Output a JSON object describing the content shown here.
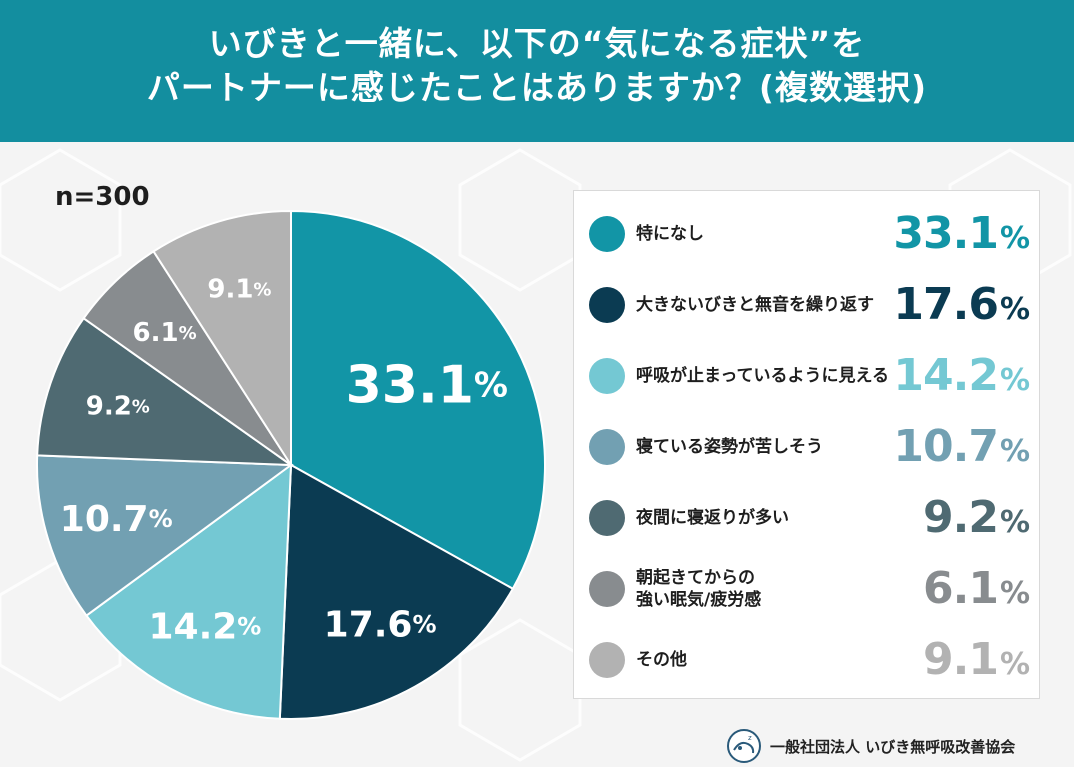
{
  "header": {
    "title_line1": "いびきと一緒に、以下の“気になる症状”を",
    "title_line2": "パートナーに感じたことはありますか？(複数選択)"
  },
  "sample": "n=300",
  "footer": {
    "org": "一般社団法人 いびき無呼吸改善協会"
  },
  "colors": {
    "header": "#138e9f"
  },
  "chart_data": {
    "type": "pie",
    "unit": "%",
    "slices": [
      {
        "label": "特になし",
        "value": 33.1,
        "color": "#1295a6"
      },
      {
        "label": "大きないびきと無音を繰り返す",
        "value": 17.6,
        "color": "#0b3b52"
      },
      {
        "label": "呼吸が止まっているように見える",
        "value": 14.2,
        "color": "#74c8d3"
      },
      {
        "label": "寝ている姿勢が苦しそう",
        "value": 10.7,
        "color": "#72a0b2"
      },
      {
        "label": "夜間に寝返りが多い",
        "value": 9.2,
        "color": "#4f6a72"
      },
      {
        "label": "朝起きてからの\n強い眠気/疲労感",
        "value": 6.1,
        "color": "#888c8f"
      },
      {
        "label": "その他",
        "value": 9.1,
        "color": "#b2b2b2"
      }
    ]
  }
}
